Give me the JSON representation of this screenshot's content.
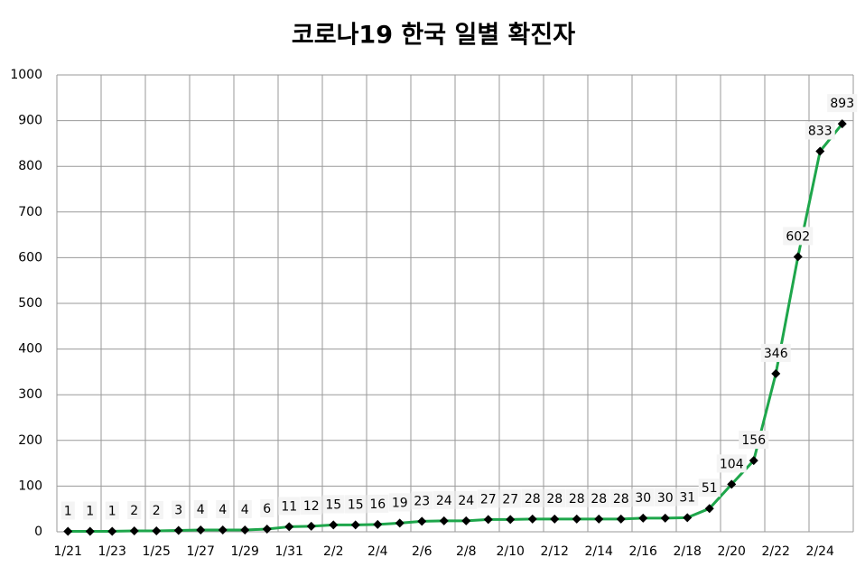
{
  "chart_data": {
    "type": "line",
    "title": "코로나19 한국 일별 확진자",
    "categories": [
      "1/21",
      null,
      "1/23",
      null,
      "1/25",
      null,
      "1/27",
      null,
      "1/29",
      null,
      "1/31",
      null,
      "2/2",
      null,
      "2/4",
      null,
      "2/6",
      null,
      "2/8",
      null,
      "2/10",
      null,
      "2/12",
      null,
      "2/14",
      null,
      "2/16",
      null,
      "2/18",
      null,
      "2/20",
      null,
      "2/22",
      null,
      "2/24",
      null
    ],
    "values": [
      1,
      1,
      1,
      2,
      2,
      3,
      4,
      4,
      4,
      6,
      11,
      12,
      15,
      15,
      16,
      19,
      23,
      24,
      24,
      27,
      27,
      28,
      28,
      28,
      28,
      28,
      30,
      30,
      31,
      51,
      104,
      156,
      346,
      602,
      833,
      893
    ],
    "color": "#1ea64b",
    "marker_color": "#000000",
    "ylim": [
      0,
      1000
    ],
    "yticks": [
      0,
      100,
      200,
      300,
      400,
      500,
      600,
      700,
      800,
      900,
      1000
    ],
    "grid": true
  }
}
